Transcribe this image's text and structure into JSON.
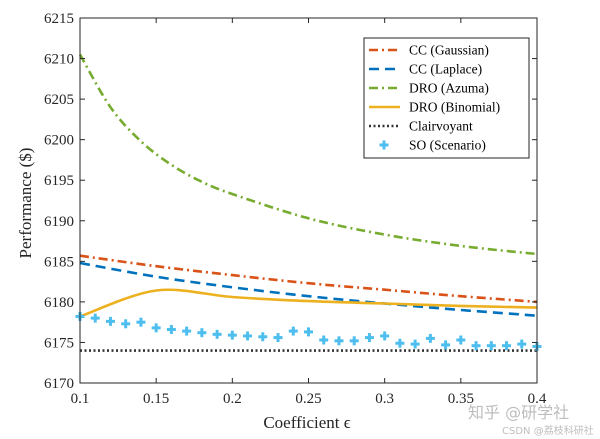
{
  "chart_data": {
    "type": "line",
    "title": "",
    "xlabel": "Coefficient ϵ",
    "ylabel": "Performance ($)",
    "xlim": [
      0.1,
      0.4
    ],
    "ylim": [
      6170,
      6215
    ],
    "xticks": [
      "0.1",
      "0.15",
      "0.2",
      "0.25",
      "0.3",
      "0.35",
      "0.4"
    ],
    "yticks": [
      "6170",
      "6175",
      "6180",
      "6185",
      "6190",
      "6195",
      "6200",
      "6205",
      "6210",
      "6215"
    ],
    "grid": false,
    "legend_position": "top-right",
    "series": [
      {
        "name": "CC (Gaussian)",
        "style": "dashdot",
        "color": "#d95319",
        "x": [
          0.1,
          0.15,
          0.2,
          0.25,
          0.3,
          0.35,
          0.4
        ],
        "y": [
          6185.7,
          6184.4,
          6183.3,
          6182.3,
          6181.5,
          6180.7,
          6180.0
        ]
      },
      {
        "name": "CC (Laplace)",
        "style": "dashed",
        "color": "#0072bd",
        "x": [
          0.1,
          0.15,
          0.2,
          0.25,
          0.3,
          0.35,
          0.4
        ],
        "y": [
          6184.8,
          6183.1,
          6181.8,
          6180.7,
          6179.8,
          6179.0,
          6178.3
        ]
      },
      {
        "name": "DRO (Azuma)",
        "style": "dashdot",
        "color": "#77ac30",
        "x": [
          0.1,
          0.12,
          0.14,
          0.16,
          0.18,
          0.2,
          0.25,
          0.3,
          0.35,
          0.4
        ],
        "y": [
          6210.5,
          6204.0,
          6199.8,
          6196.9,
          6194.8,
          6193.3,
          6190.3,
          6188.3,
          6186.9,
          6185.9
        ]
      },
      {
        "name": "DRO (Binomial)",
        "style": "solid",
        "color": "#edb120",
        "x": [
          0.1,
          0.15,
          0.2,
          0.25,
          0.3,
          0.35,
          0.4
        ],
        "y": [
          6178.2,
          6181.4,
          6180.6,
          6180.1,
          6179.8,
          6179.5,
          6179.3
        ]
      },
      {
        "name": "Clairvoyant",
        "style": "dotted",
        "color": "#333333",
        "x": [
          0.1,
          0.4
        ],
        "y": [
          6174.0,
          6174.0
        ]
      },
      {
        "name": "SO (Scenario)",
        "style": "markers",
        "color": "#4dbeee",
        "x": [
          0.1,
          0.11,
          0.12,
          0.13,
          0.14,
          0.15,
          0.16,
          0.17,
          0.18,
          0.19,
          0.2,
          0.21,
          0.22,
          0.23,
          0.24,
          0.25,
          0.26,
          0.27,
          0.28,
          0.29,
          0.3,
          0.31,
          0.32,
          0.33,
          0.34,
          0.35,
          0.36,
          0.37,
          0.38,
          0.39,
          0.4
        ],
        "y": [
          6178.2,
          6178.0,
          6177.6,
          6177.3,
          6177.5,
          6176.8,
          6176.6,
          6176.4,
          6176.2,
          6176.0,
          6175.9,
          6175.8,
          6175.7,
          6175.6,
          6176.4,
          6176.3,
          6175.3,
          6175.2,
          6175.2,
          6175.6,
          6175.8,
          6174.9,
          6174.8,
          6175.5,
          6174.7,
          6175.3,
          6174.6,
          6174.6,
          6174.6,
          6174.8,
          6174.5
        ]
      }
    ]
  },
  "watermark": {
    "main": "知乎 @研学社",
    "sub": "CSDN @荔枝科研社"
  }
}
